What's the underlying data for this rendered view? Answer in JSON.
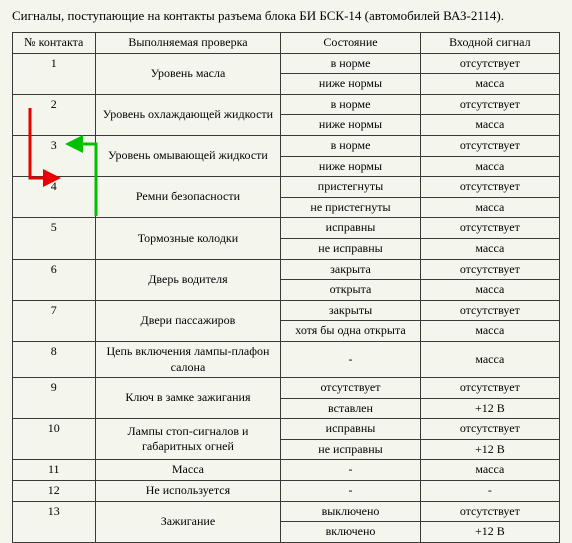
{
  "title": "Сигналы, поступающие на контакты разъема блока БИ БСК-14 (автомобилей ВАЗ-2114).",
  "headers": {
    "num": "№ контакта",
    "check": "Выполняемая проверка",
    "state": "Состояние",
    "signal": "Входной сигнал"
  },
  "rows": [
    {
      "num": "1",
      "check": "Уровень масла",
      "states": [
        "в норме",
        "ниже нормы"
      ],
      "signals": [
        "отсутствует",
        "масса"
      ]
    },
    {
      "num": "2",
      "check": "Уровень охлаждающей жидкости",
      "states": [
        "в норме",
        "ниже нормы"
      ],
      "signals": [
        "отсутствует",
        "масса"
      ]
    },
    {
      "num": "3",
      "check": "Уровень омывающей жидкости",
      "states": [
        "в норме",
        "ниже нормы"
      ],
      "signals": [
        "отсутствует",
        "масса"
      ]
    },
    {
      "num": "4",
      "check": "Ремни безопасности",
      "states": [
        "пристегнуты",
        "не пристегнуты"
      ],
      "signals": [
        "отсутствует",
        "масса"
      ]
    },
    {
      "num": "5",
      "check": "Тормозные колодки",
      "states": [
        "исправны",
        "не исправны"
      ],
      "signals": [
        "отсутствует",
        "масса"
      ]
    },
    {
      "num": "6",
      "check": "Дверь водителя",
      "states": [
        "закрыта",
        "открыта"
      ],
      "signals": [
        "отсутствует",
        "масса"
      ]
    },
    {
      "num": "7",
      "check": "Двери пассажиров",
      "states": [
        "закрыты",
        "хотя бы одна открыта"
      ],
      "signals": [
        "отсутствует",
        "масса"
      ]
    },
    {
      "num": "8",
      "check": "Цепь включения лампы-плафон салона",
      "states": [
        "-"
      ],
      "signals": [
        "масса"
      ]
    },
    {
      "num": "9",
      "check": "Ключ в замке зажигания",
      "states": [
        "отсутствует",
        "вставлен"
      ],
      "signals": [
        "отсутствует",
        "+12 В"
      ]
    },
    {
      "num": "10",
      "check": "Лампы стоп-сигналов и габаритных огней",
      "states": [
        "исправны",
        "не исправны"
      ],
      "signals": [
        "отсутствует",
        "+12 В"
      ]
    },
    {
      "num": "11",
      "check": "Масса",
      "states": [
        "-"
      ],
      "signals": [
        "масса"
      ]
    },
    {
      "num": "12",
      "check": "Не используется",
      "states": [
        "-"
      ],
      "signals": [
        "-"
      ]
    },
    {
      "num": "13",
      "check": "Зажигание",
      "states": [
        "выключено",
        "включено"
      ],
      "signals": [
        "отсутствует",
        "+12 В"
      ]
    }
  ],
  "arrows": {
    "red": {
      "color": "#e60000",
      "width": 3
    },
    "green": {
      "color": "#00c000",
      "width": 3
    }
  }
}
